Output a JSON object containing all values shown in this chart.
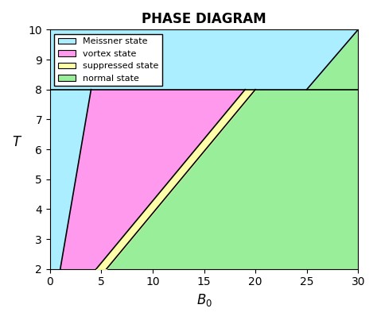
{
  "title": "PHASE DIAGRAM",
  "xlabel": "B_0",
  "ylabel": "T",
  "xlim": [
    0,
    30
  ],
  "ylim": [
    2,
    10
  ],
  "xticks": [
    0,
    5,
    10,
    15,
    20,
    25,
    30
  ],
  "yticks": [
    2,
    3,
    4,
    5,
    6,
    7,
    8,
    9,
    10
  ],
  "hline_y": 8,
  "colors": {
    "meissner": "#aaeeff",
    "vortex": "#ff99ee",
    "suppressed": "#ffffaa",
    "normal": "#99ee99"
  },
  "legend_labels": [
    "Meissner state",
    "vortex state",
    "suppressed state",
    "normal state"
  ],
  "line_color": "black",
  "line_width": 1.2,
  "lines": {
    "L1": {
      "B0_at_T2": 1.0,
      "B0_at_T8": 4.0
    },
    "L2": {
      "B0_at_T2": 4.5,
      "B0_at_T8": 19.0
    },
    "L3": {
      "B0_at_T2": 5.5,
      "B0_at_T8": 20.0
    },
    "L4": {
      "B0_at_T8": 25.0,
      "B0_at_T10": 30.0
    }
  }
}
